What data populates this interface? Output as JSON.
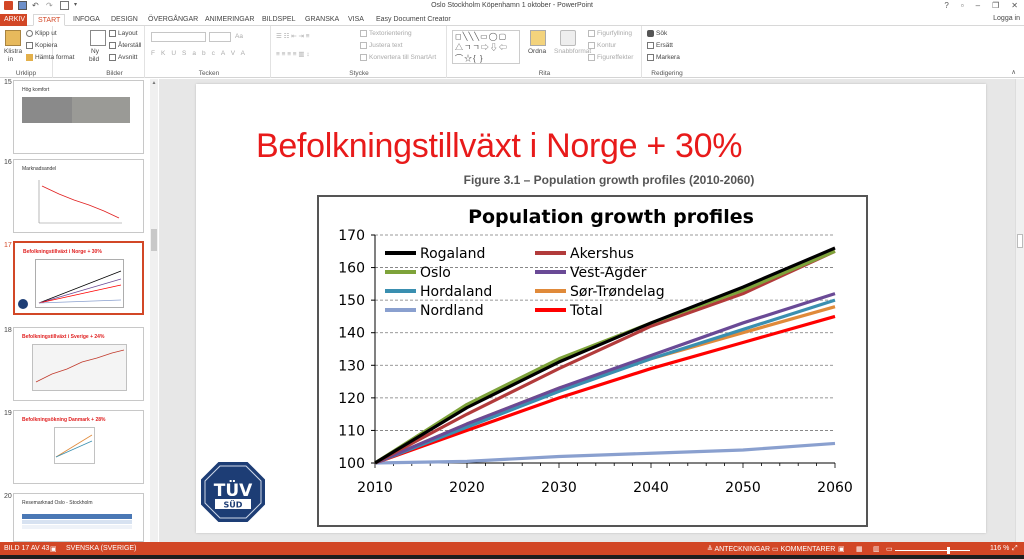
{
  "window": {
    "title": "Oslo Stockholm Köpenhamn 1 oktober - PowerPoint",
    "login": "Logga in",
    "buttons": [
      "?",
      "▫",
      "–",
      "❐",
      "✕"
    ]
  },
  "tabs": [
    "ARKIV",
    "START",
    "INFOGA",
    "DESIGN",
    "ÖVERGÅNGAR",
    "ANIMERINGAR",
    "BILDSPEL",
    "GRANSKA",
    "VISA",
    "Easy Document Creator"
  ],
  "active_tab": "START",
  "ribbon": {
    "clipboard": {
      "paste": "Klistra",
      "paste2": "in",
      "cut": "Klipp ut",
      "copy": "Kopiera",
      "format": "Hämta format",
      "label": "Urklipp"
    },
    "slides": {
      "new": "Ny",
      "new2": "bild",
      "layout": "Layout",
      "reset": "Återställ",
      "section": "Avsnitt",
      "label": "Bilder"
    },
    "font": {
      "buttons": [
        "F",
        "K",
        "U",
        "S",
        "abc",
        "AV",
        "Aa",
        "A"
      ],
      "label": "Tecken"
    },
    "paragraph": {
      "dir": "Textorientering",
      "align": "Justera text",
      "smart": "Konvertera till SmartArt",
      "label": "Stycke"
    },
    "drawing": {
      "arrange": "Ordna",
      "quick": "Snabbformat",
      "fill": "Figurfyllning",
      "outline": "Kontur",
      "effects": "Figureffekter",
      "label": "Rita"
    },
    "editing": {
      "find": "Sök",
      "replace": "Ersätt",
      "select": "Markera",
      "label": "Redigering"
    }
  },
  "thumbnails": [
    {
      "num": "15",
      "title": "Hög komfort",
      "red": false
    },
    {
      "num": "16",
      "title": "Marknadsandel",
      "red": false
    },
    {
      "num": "17",
      "title": "Befolkningstillväxt i Norge + 30%",
      "red": true,
      "selected": true
    },
    {
      "num": "18",
      "title": "Befolkningstillväxt i Sverige + 24%",
      "red": true
    },
    {
      "num": "19",
      "title": "Befolkningsökning Danmark + 28%",
      "red": true
    },
    {
      "num": "20",
      "title": "Resemarknad Oslo - Stockholm",
      "red": false
    }
  ],
  "slide": {
    "title": "Befolkningstillväxt i Norge + 30%",
    "figure_caption": "Figure 3.1 – Population growth profiles (2010-2060)",
    "logo_text_1": "TÜV",
    "logo_text_2": "SÜD"
  },
  "chart_data": {
    "type": "line",
    "title": "Population growth profiles",
    "x": [
      2010,
      2020,
      2030,
      2040,
      2050,
      2060
    ],
    "xlim": [
      2010,
      2060
    ],
    "ylim": [
      100,
      170
    ],
    "yticks": [
      100,
      110,
      120,
      130,
      140,
      150,
      160,
      170
    ],
    "grid": "horizontal dashed",
    "legend_placement": "top-left",
    "series": [
      {
        "name": "Rogaland",
        "color": "#000000",
        "values": [
          100,
          117,
          131,
          143,
          154,
          166
        ]
      },
      {
        "name": "Akershus",
        "color": "#b23b3b",
        "values": [
          100,
          115,
          129,
          142,
          152,
          165
        ]
      },
      {
        "name": "Oslo",
        "color": "#7ea33a",
        "values": [
          100,
          118,
          132,
          143,
          153,
          165
        ]
      },
      {
        "name": "Vest-Agder",
        "color": "#6a4a96",
        "values": [
          100,
          112,
          123,
          133,
          143,
          152
        ]
      },
      {
        "name": "Hordaland",
        "color": "#3a8fb0",
        "values": [
          100,
          111,
          122,
          132,
          141,
          150
        ]
      },
      {
        "name": "Sør-Trøndelag",
        "color": "#e08a3a",
        "values": [
          100,
          112,
          123,
          132,
          140,
          148
        ]
      },
      {
        "name": "Nordland",
        "color": "#8aa0cf",
        "values": [
          100,
          100.5,
          102,
          103,
          104,
          106
        ]
      },
      {
        "name": "Total",
        "color": "#ff0000",
        "values": [
          100,
          110,
          120,
          129,
          137,
          145
        ]
      }
    ]
  },
  "status": {
    "slide_info": "BILD 17 AV 43",
    "language": "SVENSKA (SVERIGE)",
    "notes": "ANTECKNINGAR",
    "comments": "KOMMENTARER",
    "zoom": "116 %"
  },
  "colors": {
    "accent": "#d24726",
    "title_red": "#e81a1a"
  }
}
